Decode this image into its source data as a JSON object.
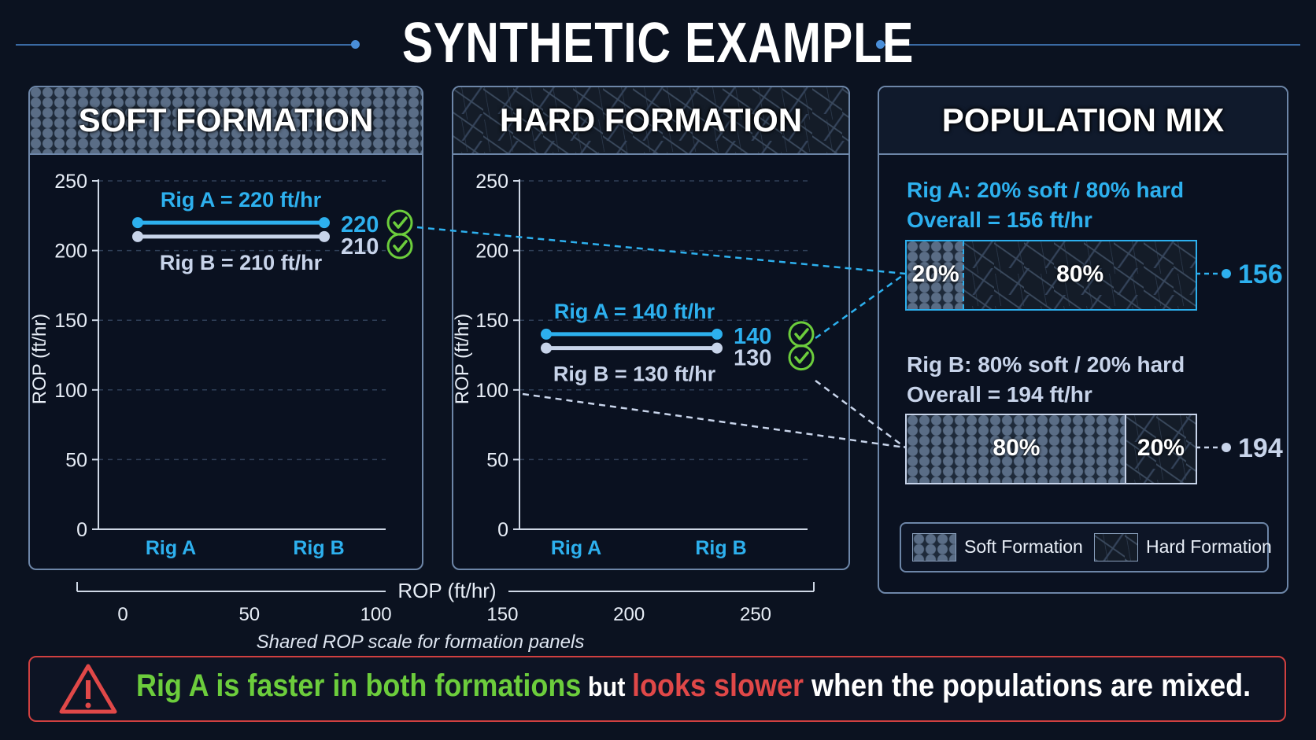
{
  "title": "SYNTHETIC EXAMPLE",
  "panels": {
    "soft": {
      "title": "SOFT FORMATION"
    },
    "hard": {
      "title": "HARD FORMATION"
    },
    "mix": {
      "title": "POPULATION MIX"
    }
  },
  "colors": {
    "rig_a": "#2db0ee",
    "rig_b": "#c8d4ea",
    "check": "#6ccd3c",
    "alert": "#e04848",
    "green_text": "#6ccd3c"
  },
  "chart_data": [
    {
      "type": "line",
      "title": "SOFT FORMATION",
      "ylabel": "ROP (ft/hr)",
      "categories": [
        "Rig A",
        "Rig B"
      ],
      "ylim": [
        0,
        250
      ],
      "yticks": [
        "0",
        "50",
        "100",
        "150",
        "200",
        "250"
      ],
      "series": [
        {
          "name": "Rig A",
          "value": 220,
          "label": "Rig A = 220 ft/hr",
          "value_label": "220"
        },
        {
          "name": "Rig B",
          "value": 210,
          "label": "Rig B = 210 ft/hr",
          "value_label": "210"
        }
      ]
    },
    {
      "type": "line",
      "title": "HARD FORMATION",
      "ylabel": "ROP (ft/hr)",
      "categories": [
        "Rig A",
        "Rig B"
      ],
      "ylim": [
        0,
        250
      ],
      "yticks": [
        "0",
        "50",
        "100",
        "150",
        "200",
        "250"
      ],
      "series": [
        {
          "name": "Rig A",
          "value": 140,
          "label": "Rig A = 140 ft/hr",
          "value_label": "140"
        },
        {
          "name": "Rig B",
          "value": 130,
          "label": "Rig B = 130 ft/hr",
          "value_label": "130"
        }
      ]
    },
    {
      "type": "bar",
      "title": "POPULATION MIX",
      "series": [
        {
          "name": "Rig A",
          "label_line1": "Rig A: 20% soft / 80% hard",
          "label_line2": "Overall = 156 ft/hr",
          "soft_pct": 20,
          "hard_pct": 80,
          "soft_label": "20%",
          "hard_label": "80%",
          "overall": 156,
          "overall_label": "156"
        },
        {
          "name": "Rig B",
          "label_line1": "Rig B: 80% soft / 20% hard",
          "label_line2": "Overall = 194 ft/hr",
          "soft_pct": 80,
          "hard_pct": 20,
          "soft_label": "80%",
          "hard_label": "20%",
          "overall": 194,
          "overall_label": "194"
        }
      ],
      "legend": [
        "Soft Formation",
        "Hard Formation"
      ]
    }
  ],
  "shared_scale": {
    "label": "ROP (ft/hr)",
    "ticks": [
      "0",
      "50",
      "100",
      "150",
      "200",
      "250"
    ],
    "xlim": [
      0,
      250
    ],
    "caption": "Shared ROP scale for formation panels"
  },
  "banner": {
    "part1": "Rig A is faster in both formations",
    "part2": " but ",
    "part3": "looks slower",
    "part4": " when the populations are mixed."
  }
}
